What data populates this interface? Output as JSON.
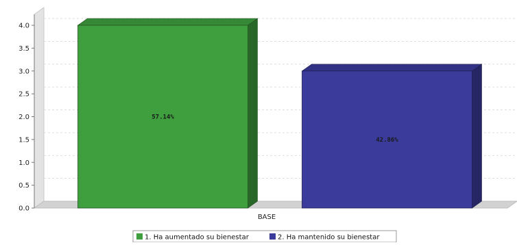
{
  "chart_data": {
    "type": "bar",
    "categories": [
      "BASE"
    ],
    "series": [
      {
        "name": "1. Ha aumentado su bienestar",
        "values": [
          4.0
        ],
        "data_label": "57.14%",
        "color": "#3f9f3f"
      },
      {
        "name": "2. Ha mantenido su bienestar",
        "values": [
          3.0
        ],
        "data_label": "42.86%",
        "color": "#3b3b9c"
      }
    ],
    "ylim": [
      0,
      4.0
    ],
    "yticks": [
      "0.0",
      "0.5",
      "1.0",
      "1.5",
      "2.0",
      "2.5",
      "3.0",
      "3.5",
      "4.0"
    ],
    "grid": true,
    "legend_position": "bottom",
    "style": "3d"
  }
}
